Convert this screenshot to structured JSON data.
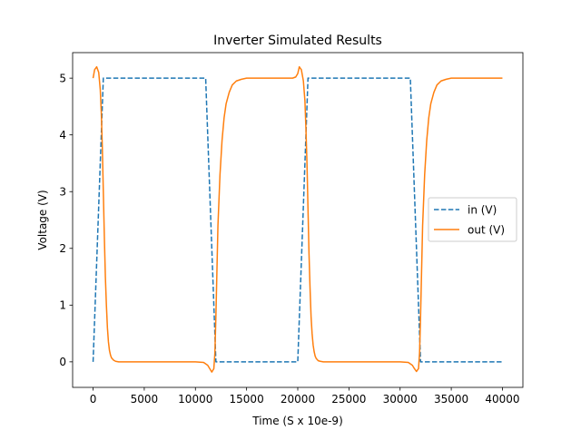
{
  "chart_data": {
    "type": "line",
    "title": "Inverter Simulated Results",
    "xlabel": "Time (S x 10e-9)",
    "ylabel": "Voltage (V)",
    "xlim": [
      -2000,
      42000
    ],
    "ylim": [
      -0.45,
      5.45
    ],
    "xticks": [
      0,
      5000,
      10000,
      15000,
      20000,
      25000,
      30000,
      35000,
      40000
    ],
    "yticks": [
      0,
      1,
      2,
      3,
      4,
      5
    ],
    "grid": false,
    "legend_position": "center-right",
    "series": [
      {
        "name": "in (V)",
        "color": "#1f77b4",
        "style": "dashed",
        "x": [
          0,
          1000,
          11000,
          12000,
          20000,
          21000,
          31000,
          32000,
          40000
        ],
        "y": [
          0,
          5,
          5,
          0,
          0,
          5,
          5,
          0,
          0
        ]
      },
      {
        "name": "out (V)",
        "color": "#ff7f0e",
        "style": "solid",
        "x": [
          0,
          150,
          350,
          550,
          700,
          800,
          900,
          1000,
          1100,
          1200,
          1300,
          1400,
          1500,
          1600,
          1700,
          1800,
          2000,
          2200,
          2500,
          3000,
          4000,
          6000,
          8000,
          10000,
          10800,
          11200,
          11400,
          11600,
          11800,
          11900,
          12000,
          12100,
          12200,
          12400,
          12600,
          12800,
          13000,
          13300,
          13600,
          14000,
          14500,
          15000,
          16000,
          18000,
          19500,
          19800,
          20000,
          20150,
          20350,
          20550,
          20700,
          20800,
          20900,
          21000,
          21100,
          21200,
          21300,
          21400,
          21500,
          21600,
          21700,
          21800,
          22000,
          22200,
          22500,
          23000,
          24000,
          26000,
          28000,
          30000,
          30800,
          31200,
          31400,
          31600,
          31800,
          31900,
          32000,
          32100,
          32200,
          32400,
          32600,
          32800,
          33000,
          33300,
          33600,
          34000,
          34500,
          35000,
          36000,
          38000,
          40000
        ],
        "y": [
          5.0,
          5.15,
          5.2,
          5.1,
          4.8,
          4.4,
          3.8,
          3.0,
          2.2,
          1.5,
          1.0,
          0.6,
          0.35,
          0.2,
          0.12,
          0.07,
          0.03,
          0.01,
          0.0,
          0.0,
          0.0,
          0.0,
          0.0,
          0.0,
          -0.01,
          -0.06,
          -0.12,
          -0.18,
          -0.12,
          0.15,
          0.8,
          1.6,
          2.4,
          3.3,
          3.9,
          4.3,
          4.55,
          4.75,
          4.88,
          4.95,
          4.98,
          5.0,
          5.0,
          5.0,
          5.0,
          5.02,
          5.08,
          5.2,
          5.15,
          4.95,
          4.6,
          4.1,
          3.5,
          2.7,
          1.9,
          1.3,
          0.8,
          0.5,
          0.3,
          0.18,
          0.1,
          0.06,
          0.02,
          0.01,
          0.0,
          0.0,
          0.0,
          0.0,
          0.0,
          0.0,
          -0.01,
          -0.06,
          -0.12,
          -0.17,
          -0.12,
          0.15,
          0.8,
          1.6,
          2.4,
          3.3,
          3.9,
          4.3,
          4.55,
          4.75,
          4.88,
          4.95,
          4.98,
          5.0,
          5.0,
          5.0,
          5.0
        ]
      }
    ]
  }
}
